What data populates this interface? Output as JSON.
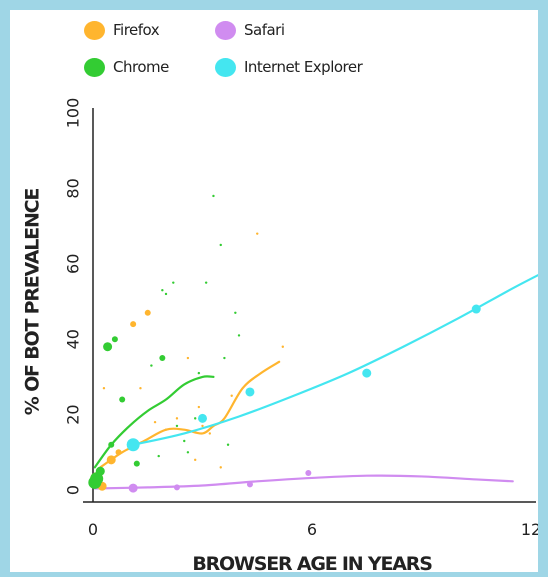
{
  "colors": {
    "Firefox": "#ffb52e",
    "Chrome": "#33cc33",
    "Safari": "#d08cf0",
    "Internet Explorer": "#44e6f0",
    "frame": "#9fd6e6",
    "axis": "#222222"
  },
  "legend": [
    {
      "label": "Firefox",
      "color": "#ffb52e",
      "icon": "circle"
    },
    {
      "label": "Safari",
      "color": "#d08cf0",
      "icon": "circle"
    },
    {
      "label": "Chrome",
      "color": "#33cc33",
      "icon": "circle"
    },
    {
      "label": "Internet Explorer",
      "color": "#44e6f0",
      "icon": "circle"
    }
  ],
  "chart_data": {
    "type": "scatter",
    "xlabel": "BROWSER AGE IN YEARS",
    "ylabel": "% OF BOT PREVALENCE",
    "xlim": [
      0,
      12
    ],
    "ylim": [
      0,
      100
    ],
    "xticks": [
      "0",
      "6",
      "12"
    ],
    "yticks": [
      "0",
      "20",
      "40",
      "60",
      "80",
      "100"
    ],
    "grid": false,
    "legend_position": "top-left",
    "series": [
      {
        "name": "Firefox",
        "points": [
          {
            "x": 0.1,
            "y": 3,
            "size": "large"
          },
          {
            "x": 0.25,
            "y": 1,
            "size": "medium"
          },
          {
            "x": 0.5,
            "y": 8,
            "size": "medium"
          },
          {
            "x": 0.7,
            "y": 10,
            "size": "small"
          },
          {
            "x": 1.1,
            "y": 44,
            "size": "small"
          },
          {
            "x": 1.5,
            "y": 47,
            "size": "small"
          },
          {
            "x": 0.3,
            "y": 27,
            "size": "tiny"
          },
          {
            "x": 1.3,
            "y": 27,
            "size": "tiny"
          },
          {
            "x": 1.7,
            "y": 18,
            "size": "tiny"
          },
          {
            "x": 2.0,
            "y": 16,
            "size": "tiny"
          },
          {
            "x": 2.3,
            "y": 19,
            "size": "tiny"
          },
          {
            "x": 2.6,
            "y": 35,
            "size": "tiny"
          },
          {
            "x": 2.9,
            "y": 22,
            "size": "tiny"
          },
          {
            "x": 3.0,
            "y": 17,
            "size": "tiny"
          },
          {
            "x": 3.2,
            "y": 15,
            "size": "tiny"
          },
          {
            "x": 3.5,
            "y": 6,
            "size": "tiny"
          },
          {
            "x": 4.5,
            "y": 68,
            "size": "tiny"
          },
          {
            "x": 5.2,
            "y": 38,
            "size": "tiny"
          },
          {
            "x": 2.8,
            "y": 8,
            "size": "tiny"
          },
          {
            "x": 3.8,
            "y": 25,
            "size": "tiny"
          }
        ],
        "trend": [
          [
            0.2,
            6
          ],
          [
            0.8,
            10
          ],
          [
            1.4,
            13
          ],
          [
            2.0,
            16
          ],
          [
            2.5,
            16
          ],
          [
            3.0,
            15
          ],
          [
            3.3,
            17
          ],
          [
            3.6,
            19
          ],
          [
            4.1,
            27
          ],
          [
            4.6,
            31
          ],
          [
            5.1,
            34
          ]
        ]
      },
      {
        "name": "Chrome",
        "points": [
          {
            "x": 0.05,
            "y": 2,
            "size": "large"
          },
          {
            "x": 0.1,
            "y": 3,
            "size": "large"
          },
          {
            "x": 0.2,
            "y": 5,
            "size": "medium"
          },
          {
            "x": 0.4,
            "y": 38,
            "size": "medium"
          },
          {
            "x": 0.6,
            "y": 40,
            "size": "small"
          },
          {
            "x": 0.8,
            "y": 24,
            "size": "small"
          },
          {
            "x": 0.5,
            "y": 12,
            "size": "small"
          },
          {
            "x": 1.2,
            "y": 7,
            "size": "small"
          },
          {
            "x": 1.9,
            "y": 35,
            "size": "small"
          },
          {
            "x": 1.9,
            "y": 53,
            "size": "tiny"
          },
          {
            "x": 2.0,
            "y": 52,
            "size": "tiny"
          },
          {
            "x": 2.2,
            "y": 55,
            "size": "tiny"
          },
          {
            "x": 2.3,
            "y": 17,
            "size": "tiny"
          },
          {
            "x": 2.5,
            "y": 13,
            "size": "tiny"
          },
          {
            "x": 2.6,
            "y": 10,
            "size": "tiny"
          },
          {
            "x": 2.8,
            "y": 19,
            "size": "tiny"
          },
          {
            "x": 3.3,
            "y": 78,
            "size": "tiny"
          },
          {
            "x": 3.5,
            "y": 65,
            "size": "tiny"
          },
          {
            "x": 3.6,
            "y": 35,
            "size": "tiny"
          },
          {
            "x": 3.9,
            "y": 47,
            "size": "tiny"
          },
          {
            "x": 4.0,
            "y": 41,
            "size": "tiny"
          },
          {
            "x": 3.1,
            "y": 55,
            "size": "tiny"
          },
          {
            "x": 1.6,
            "y": 33,
            "size": "tiny"
          },
          {
            "x": 1.8,
            "y": 9,
            "size": "tiny"
          },
          {
            "x": 2.9,
            "y": 31,
            "size": "tiny"
          },
          {
            "x": 3.7,
            "y": 12,
            "size": "tiny"
          }
        ],
        "trend": [
          [
            0.05,
            6
          ],
          [
            0.5,
            12
          ],
          [
            1.0,
            17
          ],
          [
            1.5,
            21
          ],
          [
            2.0,
            24
          ],
          [
            2.5,
            28
          ],
          [
            3.0,
            30
          ],
          [
            3.3,
            30
          ]
        ]
      },
      {
        "name": "Safari",
        "points": [
          {
            "x": 1.1,
            "y": 0.5,
            "size": "medium"
          },
          {
            "x": 2.3,
            "y": 0.7,
            "size": "small"
          },
          {
            "x": 4.3,
            "y": 1.5,
            "size": "small"
          },
          {
            "x": 5.9,
            "y": 4.5,
            "size": "small"
          }
        ],
        "trend": [
          [
            0.05,
            0.4
          ],
          [
            1.5,
            0.7
          ],
          [
            3.0,
            1.2
          ],
          [
            4.5,
            2.3
          ],
          [
            6.0,
            3.2
          ],
          [
            7.5,
            3.8
          ],
          [
            9.0,
            3.6
          ],
          [
            10.5,
            2.8
          ],
          [
            11.5,
            2.3
          ]
        ]
      },
      {
        "name": "Internet Explorer",
        "points": [
          {
            "x": 1.1,
            "y": 12,
            "size": "large"
          },
          {
            "x": 3.0,
            "y": 19,
            "size": "medium"
          },
          {
            "x": 4.3,
            "y": 26,
            "size": "medium"
          },
          {
            "x": 7.5,
            "y": 31,
            "size": "medium"
          },
          {
            "x": 10.5,
            "y": 48,
            "size": "medium"
          }
        ],
        "trend": [
          [
            1.1,
            12
          ],
          [
            2.5,
            15
          ],
          [
            4.0,
            19.5
          ],
          [
            5.5,
            25
          ],
          [
            7.0,
            31
          ],
          [
            8.5,
            38
          ],
          [
            10.0,
            45.5
          ],
          [
            11.5,
            53.5
          ],
          [
            12.5,
            58.5
          ]
        ]
      }
    ]
  }
}
